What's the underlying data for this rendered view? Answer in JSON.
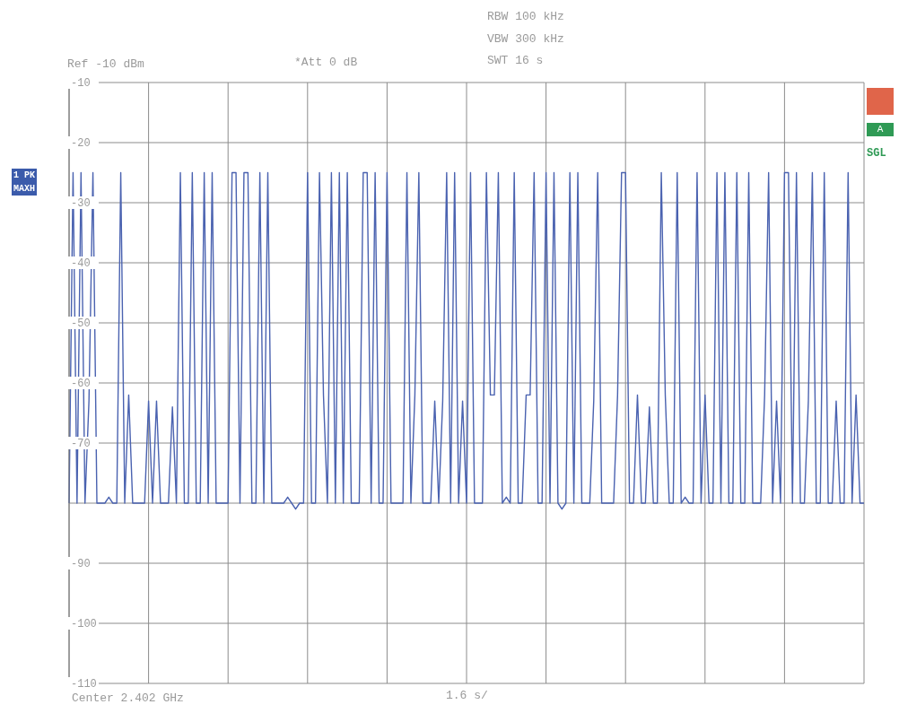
{
  "chart_data": {
    "type": "line",
    "categories": [
      null,
      null,
      null,
      null,
      null,
      null,
      null,
      null,
      null,
      null,
      null,
      null,
      null,
      null,
      null,
      null,
      null,
      null,
      null,
      null,
      null,
      null,
      null,
      null,
      null,
      null,
      null,
      null,
      null,
      null,
      null,
      null,
      null,
      null,
      null,
      null,
      null,
      null,
      null,
      null,
      null,
      null,
      null,
      null,
      null,
      null,
      null,
      null,
      null,
      null,
      null,
      null,
      null,
      null,
      null,
      null,
      null,
      null,
      null,
      null,
      null,
      null,
      null,
      null,
      null,
      null,
      null,
      null,
      null,
      null,
      null,
      null,
      null,
      null,
      null,
      null,
      null,
      null,
      null,
      null,
      null,
      null,
      null,
      null,
      null,
      null,
      null,
      null,
      null,
      null,
      null,
      null,
      null,
      null,
      null,
      null,
      null,
      null,
      null,
      null,
      null,
      null,
      null,
      null,
      null,
      null,
      null,
      null,
      null,
      null,
      null,
      null,
      null,
      null,
      null,
      null,
      null,
      null,
      null,
      null,
      null,
      null,
      null,
      null,
      null,
      null,
      null,
      null,
      null,
      null,
      null,
      null,
      null,
      null,
      null,
      null,
      null,
      null,
      null,
      null,
      null,
      null,
      null,
      null,
      null,
      null,
      null,
      null,
      null,
      null,
      null,
      null,
      null,
      null,
      null,
      null,
      null,
      null,
      null,
      null,
      null,
      null,
      null,
      null,
      null,
      null,
      null,
      null,
      null,
      null,
      null,
      null,
      null,
      null,
      null,
      null,
      null,
      null,
      null,
      null,
      null,
      null,
      null,
      null,
      null,
      null,
      null,
      null,
      null,
      null,
      null,
      null,
      null,
      null,
      null,
      null,
      null,
      null,
      null,
      null,
      null
    ],
    "series": [
      {
        "color": "#4a62b0",
        "values": [
          -80,
          -25,
          -80,
          -25,
          -80,
          -63,
          -25,
          -80,
          -80,
          -80,
          -79,
          -80,
          -80,
          -25,
          -80,
          -62,
          -80,
          -80,
          -80,
          -80,
          -63,
          -80,
          -63,
          -80,
          -80,
          -80,
          -64,
          -80,
          -25,
          -80,
          -80,
          -25,
          -80,
          -80,
          -25,
          -80,
          -25,
          -80,
          -80,
          -80,
          -80,
          -25,
          -25,
          -80,
          -25,
          -25,
          -80,
          -80,
          -25,
          -80,
          -25,
          -80,
          -80,
          -80,
          -80,
          -79,
          -80,
          -81,
          -80,
          -80,
          -25,
          -80,
          -80,
          -25,
          -62,
          -80,
          -25,
          -80,
          -25,
          -80,
          -25,
          -80,
          -80,
          -80,
          -25,
          -25,
          -80,
          -25,
          -80,
          -80,
          -25,
          -80,
          -80,
          -80,
          -80,
          -25,
          -80,
          -62,
          -25,
          -80,
          -80,
          -80,
          -63,
          -80,
          -63,
          -25,
          -80,
          -25,
          -80,
          -63,
          -80,
          -25,
          -80,
          -80,
          -80,
          -25,
          -62,
          -62,
          -25,
          -80,
          -79,
          -80,
          -25,
          -80,
          -80,
          -62,
          -62,
          -25,
          -80,
          -80,
          -25,
          -80,
          -25,
          -80,
          -81,
          -80,
          -25,
          -80,
          -25,
          -80,
          -80,
          -80,
          -63,
          -25,
          -80,
          -80,
          -80,
          -80,
          -62,
          -25,
          -25,
          -80,
          -80,
          -62,
          -80,
          -80,
          -64,
          -80,
          -80,
          -25,
          -62,
          -80,
          -80,
          -25,
          -80,
          -79,
          -80,
          -80,
          -25,
          -80,
          -62,
          -80,
          -80,
          -25,
          -80,
          -25,
          -80,
          -80,
          -25,
          -80,
          -80,
          -25,
          -80,
          -80,
          -80,
          -62,
          -25,
          -80,
          -63,
          -80,
          -25,
          -25,
          -80,
          -25,
          -80,
          -80,
          -63,
          -25,
          -80,
          -80,
          -25,
          -80,
          -80,
          -63,
          -80,
          -80,
          -25,
          -80,
          -62,
          -80,
          -80
        ]
      }
    ],
    "ylim": [
      -110,
      -10
    ],
    "yticks": [
      -10,
      -20,
      -30,
      -40,
      -50,
      -60,
      -70,
      {
        "value": -80,
        "label": null
      },
      -90,
      -100,
      -110
    ],
    "tick_labels": "y",
    "grid": true,
    "annotations": [
      "Ref -10 dBm",
      "*Att 0 dB",
      "RBW 100 kHz",
      "VBW 300 kHz",
      "SWT 16 s",
      "Center 2.402 GHz",
      "1.6 s/",
      "1 PK",
      "MAXH",
      "A",
      "SGL"
    ]
  }
}
